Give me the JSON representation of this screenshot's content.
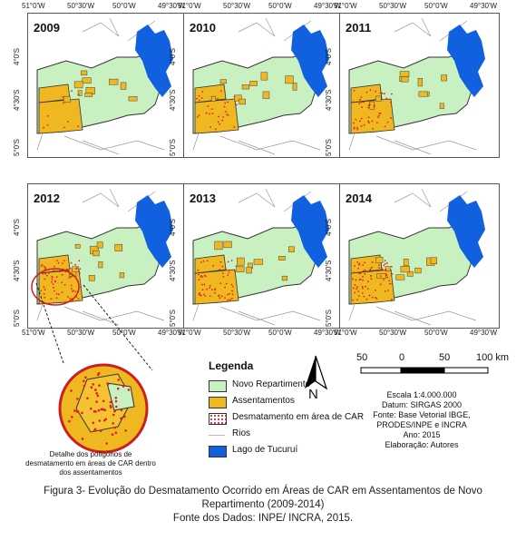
{
  "panels": [
    {
      "year": "2009",
      "density": 10
    },
    {
      "year": "2010",
      "density": 30
    },
    {
      "year": "2011",
      "density": 45
    },
    {
      "year": "2012",
      "density": 70
    },
    {
      "year": "2013",
      "density": 60
    },
    {
      "year": "2014",
      "density": 75
    }
  ],
  "axis": {
    "lon_labels": [
      "51°0'W",
      "50°30'W",
      "50°0'W",
      "49°30'W"
    ],
    "lat_labels": [
      "4°0'S",
      "4°30'S",
      "5°0'S"
    ]
  },
  "legend": {
    "title": "Legenda",
    "items": [
      {
        "label": "Novo Repartimento",
        "color": "#c8f0c0"
      },
      {
        "label": "Assentamentos",
        "color": "#f0b820"
      },
      {
        "label": "Desmatamento em área de CAR",
        "color": "#e02020"
      },
      {
        "label": "Rios",
        "color": "#bbbbbb"
      },
      {
        "label": "Lago de Tucuruí",
        "color": "#1060e0"
      }
    ]
  },
  "north": "N",
  "scale": {
    "labels": [
      "50",
      "0",
      "50",
      "100 km"
    ]
  },
  "info": {
    "escala": "Escala 1:4.000.000",
    "datum": "Datum: SIRGAS 2000",
    "fonte": "Fonte: Base Vetorial IBGE,",
    "fonte2": "PRODES/INPE e INCRA",
    "ano": "Ano: 2015",
    "elaboracao": "Elaboração: Autores"
  },
  "detail_caption": {
    "line1": "Detalhe dos polígonos de",
    "line2": "desmatamento em áreas de CAR dentro",
    "line3": "dos assentamentos"
  },
  "caption": {
    "line1": "Figura 3- Evolução do Desmatamento Ocorrido em Áreas de CAR em Assentamentos de Novo",
    "line2": "Repartimento (2009-2014)",
    "line3": "Fonte dos Dados: INPE/ INCRA, 2015."
  }
}
